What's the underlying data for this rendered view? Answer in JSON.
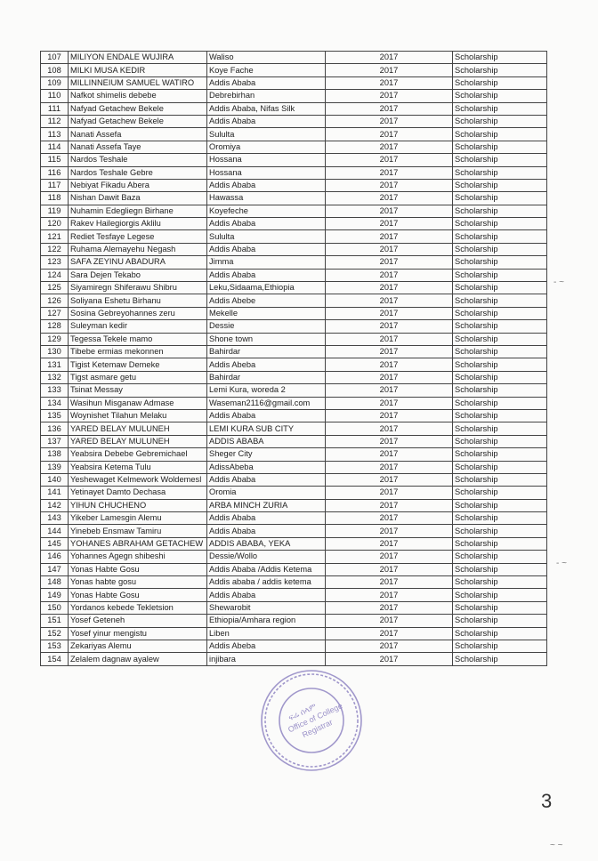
{
  "table": {
    "rows": [
      [
        "107",
        "MILIYON ENDALE WUJIRA",
        "Waliso",
        "2017",
        "Scholarship"
      ],
      [
        "108",
        "MILKI MUSA KEDIR",
        "Koye Fache",
        "2017",
        "Scholarship"
      ],
      [
        "109",
        "MILLINNEIUM SAMUEL WATIRO",
        "Addis Ababa",
        "2017",
        "Scholarship"
      ],
      [
        "110",
        "Nafkot shimelis debebe",
        "Debrebirhan",
        "2017",
        "Scholarship"
      ],
      [
        "111",
        "Nafyad Getachew Bekele",
        "Addis Ababa, Nifas Silk",
        "2017",
        "Scholarship"
      ],
      [
        "112",
        "Nafyad Getachew Bekele",
        "Addis Ababa",
        "2017",
        "Scholarship"
      ],
      [
        "113",
        "Nanati Assefa",
        "Sululta",
        "2017",
        "Scholarship"
      ],
      [
        "114",
        "Nanati Assefa Taye",
        "Oromiya",
        "2017",
        "Scholarship"
      ],
      [
        "115",
        "Nardos Teshale",
        "Hossana",
        "2017",
        "Scholarship"
      ],
      [
        "116",
        "Nardos Teshale Gebre",
        "Hossana",
        "2017",
        "Scholarship"
      ],
      [
        "117",
        "Nebiyat Fikadu Abera",
        "Addis Ababa",
        "2017",
        "Scholarship"
      ],
      [
        "118",
        "Nishan Dawit Baza",
        "Hawassa",
        "2017",
        "Scholarship"
      ],
      [
        "119",
        "Nuhamin Edegliegn Birhane",
        "Koyefeche",
        "2017",
        "Scholarship"
      ],
      [
        "120",
        "Rakev Hailegiorgis Aklilu",
        "Addis Ababa",
        "2017",
        "Scholarship"
      ],
      [
        "121",
        "Rediet Tesfaye Legese",
        "Sululta",
        "2017",
        "Scholarship"
      ],
      [
        "122",
        "Ruhama Alemayehu Negash",
        "Addis Ababa",
        "2017",
        "Scholarship"
      ],
      [
        "123",
        "SAFA ZEYINU ABADURA",
        "Jimma",
        "2017",
        "Scholarship"
      ],
      [
        "124",
        "Sara Dejen Tekabo",
        "Addis Ababa",
        "2017",
        "Scholarship"
      ],
      [
        "125",
        "Siyamiregn Shiferawu Shibru",
        "Leku,Sidaama,Ethiopia",
        "2017",
        "Scholarship"
      ],
      [
        "126",
        "Soliyana Eshetu Birhanu",
        "Addis Abebe",
        "2017",
        "Scholarship"
      ],
      [
        "127",
        "Sosina Gebreyohannes zeru",
        "Mekelle",
        "2017",
        "Scholarship"
      ],
      [
        "128",
        "Suleyman kedir",
        "Dessie",
        "2017",
        "Scholarship"
      ],
      [
        "129",
        "Tegessa Tekele mamo",
        "Shone town",
        "2017",
        "Scholarship"
      ],
      [
        "130",
        "Tibebe ermias mekonnen",
        "Bahirdar",
        "2017",
        "Scholarship"
      ],
      [
        "131",
        "Tigist Ketemaw Demeke",
        "Addis Abeba",
        "2017",
        "Scholarship"
      ],
      [
        "132",
        "Tigst asmare getu",
        "Bahirdar",
        "2017",
        "Scholarship"
      ],
      [
        "133",
        "Tsinat Messay",
        "Lemi Kura, woreda 2",
        "2017",
        "Scholarship"
      ],
      [
        "134",
        "Wasihun Misganaw Admase",
        "Waseman2116@gmail.com",
        "2017",
        "Scholarship"
      ],
      [
        "135",
        "Woynishet Tilahun Melaku",
        "Addis Ababa",
        "2017",
        "Scholarship"
      ],
      [
        "136",
        "YARED BELAY MULUNEH",
        "LEMI KURA SUB CITY",
        "2017",
        "Scholarship"
      ],
      [
        "137",
        "YARED BELAY MULUNEH",
        "ADDIS ABABA",
        "2017",
        "Scholarship"
      ],
      [
        "138",
        "Yeabsira Debebe Gebremichael",
        "Sheger City",
        "2017",
        "Scholarship"
      ],
      [
        "139",
        "Yeabsira Ketema Tulu",
        "AdissAbeba",
        "2017",
        "Scholarship"
      ],
      [
        "140",
        "Yeshewaget  Kelmework Woldemesl",
        "Addis Ababa",
        "2017",
        "Scholarship"
      ],
      [
        "141",
        "Yetinayet Damto Dechasa",
        "Oromia",
        "2017",
        "Scholarship"
      ],
      [
        "142",
        "YIHUN CHUCHENO",
        "ARBA MINCH ZURIA",
        "2017",
        "Scholarship"
      ],
      [
        "143",
        "Yikeber Lamesgin Alemu",
        "Addis Ababa",
        "2017",
        "Scholarship"
      ],
      [
        "144",
        "Yinebeb Ensmaw Tamiru",
        "Addis Ababa",
        "2017",
        "Scholarship"
      ],
      [
        "145",
        "YOHANES ABRAHAM GETACHEW",
        "ADDIS ABABA, YEKA",
        "2017",
        "Scholarship"
      ],
      [
        "146",
        "Yohannes Agegn shibeshi",
        "Dessie/Wollo",
        "2017",
        "Scholarship"
      ],
      [
        "147",
        "Yonas Habte Gosu",
        "Addis Ababa /Addis Ketema",
        "2017",
        "Scholarship"
      ],
      [
        "148",
        "Yonas habte gosu",
        "Addis ababa / addis ketema",
        "2017",
        "Scholarship"
      ],
      [
        "149",
        "Yonas Habte Gosu",
        "Addis Ababa",
        "2017",
        "Scholarship"
      ],
      [
        "150",
        "Yordanos kebede Tekletsion",
        "Shewarobit",
        "2017",
        "Scholarship"
      ],
      [
        "151",
        "Yosef Geteneh",
        "Ethiopia/Amhara region",
        "2017",
        "Scholarship"
      ],
      [
        "152",
        "Yosef yinur mengistu",
        "Liben",
        "2017",
        "Scholarship"
      ],
      [
        "153",
        "Zekariyas Alemu",
        "Addis Abeba",
        "2017",
        "Scholarship"
      ],
      [
        "154",
        "Zelalem dagnaw ayalew",
        "injibara",
        "2017",
        "Scholarship"
      ]
    ]
  },
  "stamp": {
    "text": "Office of College Registrar",
    "color": "#8a7fc0"
  },
  "page_number": "3"
}
